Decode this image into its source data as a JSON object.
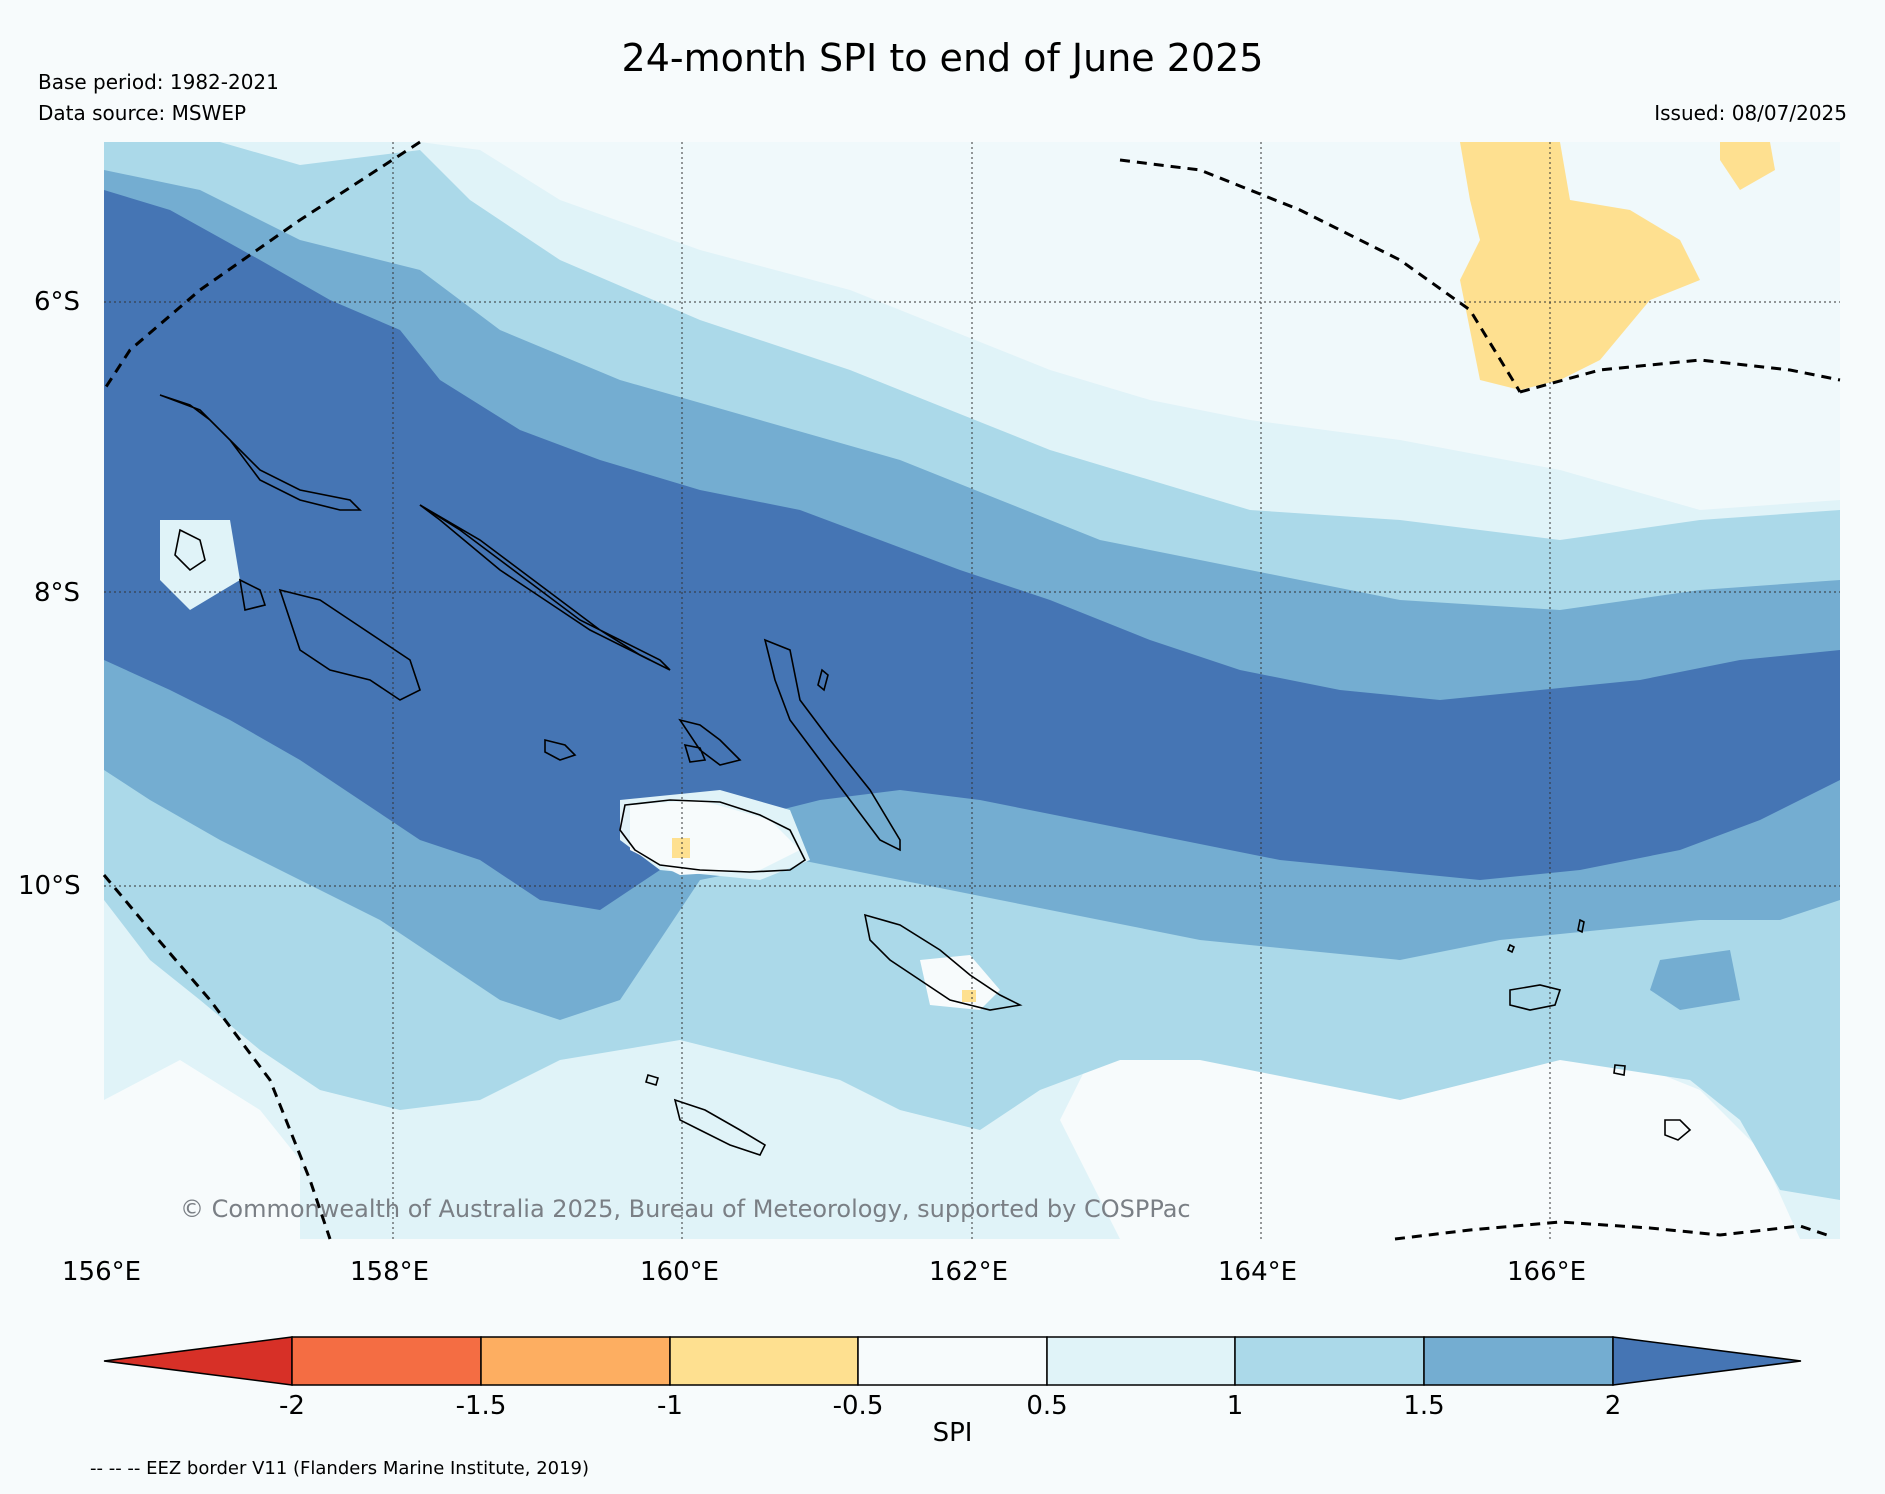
{
  "header": {
    "title": "24-month SPI to end of June 2025",
    "base_period": "Base period: 1982-2021",
    "data_source": "Data source: MSWEP",
    "issued": "Issued: 08/07/2025"
  },
  "map": {
    "lat_labels": [
      "6°S",
      "8°S",
      "10°S"
    ],
    "lon_labels": [
      "156°E",
      "158°E",
      "160°E",
      "162°E",
      "164°E",
      "166°E"
    ],
    "copyright": "© Commonwealth of Australia 2025, Bureau of Meteorology, supported by COSPPac",
    "extent": {
      "lon_min": 156,
      "lon_max": 168,
      "lat_min": -12.4,
      "lat_max": -4.9
    }
  },
  "colorbar": {
    "label": "SPI",
    "ticks": [
      "-2",
      "-1.5",
      "-1",
      "-0.5",
      "0.5",
      "1",
      "1.5",
      "2"
    ],
    "colors": [
      "#d73027",
      "#f46d43",
      "#fdae61",
      "#fee090",
      "#f7fbfc",
      "#e0f3f8",
      "#abd9e9",
      "#74add1",
      "#4575b4"
    ]
  },
  "legend": {
    "eez_note": "-- -- -- EEZ border V11 (Flanders Marine Institute, 2019)"
  }
}
